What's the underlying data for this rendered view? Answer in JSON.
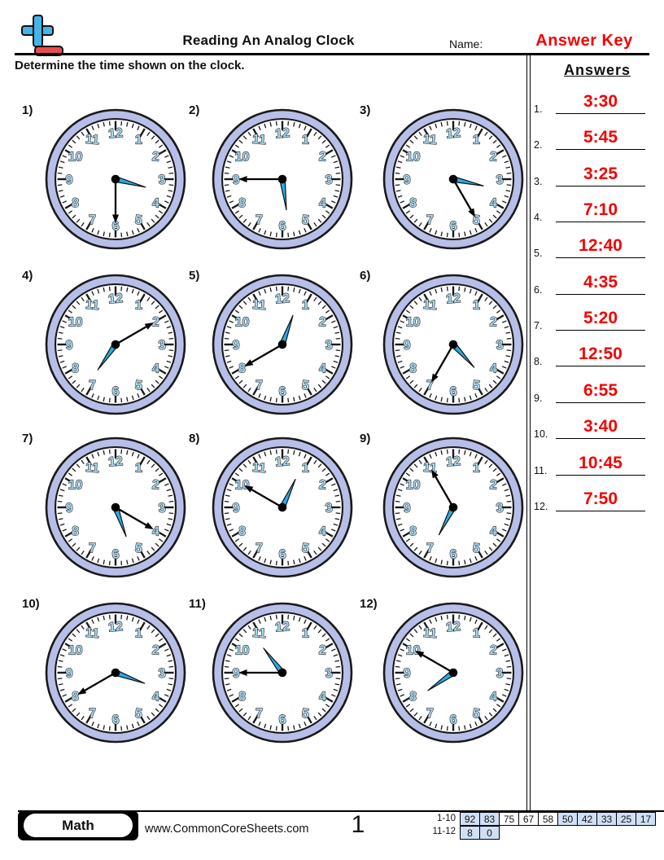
{
  "header": {
    "title": "Reading An Analog Clock",
    "name_label": "Name:",
    "answer_key": "Answer Key",
    "instructions": "Determine the time shown on the clock."
  },
  "clock_dial": {
    "numerals": [
      "1",
      "2",
      "3",
      "4",
      "5",
      "6",
      "7",
      "8",
      "9",
      "10",
      "11",
      "12"
    ]
  },
  "problems": [
    {
      "label": "1)",
      "time": "3:30"
    },
    {
      "label": "2)",
      "time": "5:45"
    },
    {
      "label": "3)",
      "time": "3:25"
    },
    {
      "label": "4)",
      "time": "7:10"
    },
    {
      "label": "5)",
      "time": "12:40"
    },
    {
      "label": "6)",
      "time": "4:35"
    },
    {
      "label": "7)",
      "time": "5:20"
    },
    {
      "label": "8)",
      "time": "12:50"
    },
    {
      "label": "9)",
      "time": "6:55"
    },
    {
      "label": "10)",
      "time": "3:40"
    },
    {
      "label": "11)",
      "time": "10:45"
    },
    {
      "label": "12)",
      "time": "7:50"
    }
  ],
  "answers": {
    "heading": "Answers",
    "items": [
      {
        "num": "1.",
        "time": "3:30"
      },
      {
        "num": "2.",
        "time": "5:45"
      },
      {
        "num": "3.",
        "time": "3:25"
      },
      {
        "num": "4.",
        "time": "7:10"
      },
      {
        "num": "5.",
        "time": "12:40"
      },
      {
        "num": "6.",
        "time": "4:35"
      },
      {
        "num": "7.",
        "time": "5:20"
      },
      {
        "num": "8.",
        "time": "12:50"
      },
      {
        "num": "9.",
        "time": "6:55"
      },
      {
        "num": "10.",
        "time": "3:40"
      },
      {
        "num": "11.",
        "time": "10:45"
      },
      {
        "num": "12.",
        "time": "7:50"
      }
    ]
  },
  "footer": {
    "subject": "Math",
    "website": "www.CommonCoreSheets.com",
    "page_number": "1",
    "grade_table": {
      "row1_label": "1-10",
      "row1": [
        {
          "value": "92",
          "highlighted": true
        },
        {
          "value": "83",
          "highlighted": true
        },
        {
          "value": "75",
          "highlighted": false
        },
        {
          "value": "67",
          "highlighted": false
        },
        {
          "value": "58",
          "highlighted": false
        },
        {
          "value": "50",
          "highlighted": true
        },
        {
          "value": "42",
          "highlighted": true
        },
        {
          "value": "33",
          "highlighted": true
        },
        {
          "value": "25",
          "highlighted": true
        },
        {
          "value": "17",
          "highlighted": true
        }
      ],
      "row2_label": "11-12",
      "row2": [
        {
          "value": "8",
          "highlighted": true
        },
        {
          "value": "0",
          "highlighted": true
        }
      ]
    }
  },
  "colors": {
    "accent_red": "#f40000",
    "clock_ring": "#b7bfe9",
    "hour_hand_blue": "#29abe2",
    "numeral_blue": "#a8d8ef",
    "grade_highlight": "#cfe0f6"
  }
}
